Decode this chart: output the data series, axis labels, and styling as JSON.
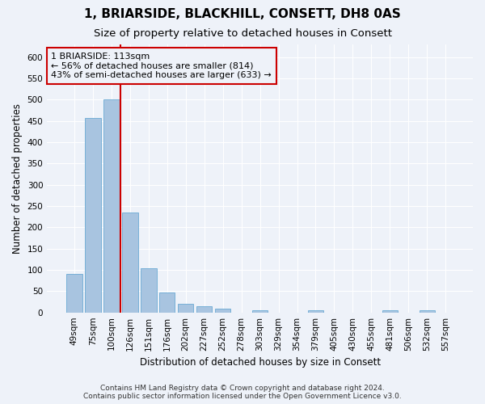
{
  "title": "1, BRIARSIDE, BLACKHILL, CONSETT, DH8 0AS",
  "subtitle": "Size of property relative to detached houses in Consett",
  "xlabel": "Distribution of detached houses by size in Consett",
  "ylabel": "Number of detached properties",
  "categories": [
    "49sqm",
    "75sqm",
    "100sqm",
    "126sqm",
    "151sqm",
    "176sqm",
    "202sqm",
    "227sqm",
    "252sqm",
    "278sqm",
    "303sqm",
    "329sqm",
    "354sqm",
    "379sqm",
    "405sqm",
    "430sqm",
    "455sqm",
    "481sqm",
    "506sqm",
    "532sqm",
    "557sqm"
  ],
  "values": [
    90,
    457,
    500,
    235,
    103,
    47,
    20,
    14,
    9,
    0,
    6,
    0,
    0,
    5,
    0,
    0,
    0,
    5,
    0,
    5,
    0
  ],
  "bar_color": "#a8c4e0",
  "bar_edgecolor": "#6aaad4",
  "annotation_text_line1": "1 BRIARSIDE: 113sqm",
  "annotation_text_line2": "← 56% of detached houses are smaller (814)",
  "annotation_text_line3": "43% of semi-detached houses are larger (633) →",
  "annotation_box_color": "#cc0000",
  "footer_line1": "Contains HM Land Registry data © Crown copyright and database right 2024.",
  "footer_line2": "Contains public sector information licensed under the Open Government Licence v3.0.",
  "ylim": [
    0,
    630
  ],
  "yticks": [
    0,
    50,
    100,
    150,
    200,
    250,
    300,
    350,
    400,
    450,
    500,
    550,
    600
  ],
  "bg_color": "#eef2f9",
  "grid_color": "#ffffff",
  "title_fontsize": 11,
  "subtitle_fontsize": 9.5,
  "axis_label_fontsize": 8.5,
  "tick_fontsize": 7.5,
  "footer_fontsize": 6.5,
  "annotation_fontsize": 8
}
